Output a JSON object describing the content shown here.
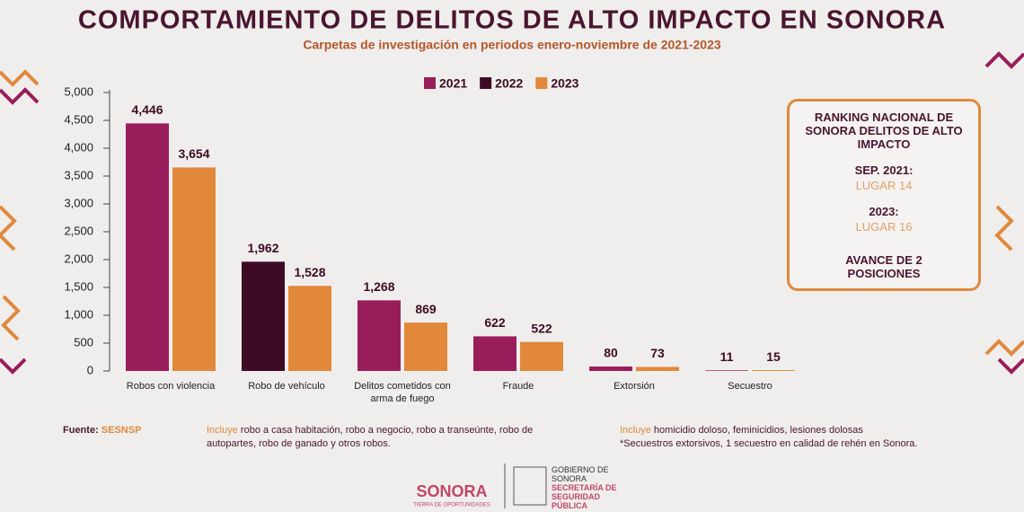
{
  "chart_data": {
    "type": "bar",
    "title": "COMPORTAMIENTO DE DELITOS DE ALTO IMPACTO EN SONORA",
    "subtitle": "Carpetas de investigación en periodos enero-noviembre de 2021-2023",
    "categories": [
      "Robos con violencia",
      "Robo de vehículo",
      "Delitos cometidos con arma de fuego",
      "Fraude",
      "Extorsión",
      "Secuestro"
    ],
    "series": [
      {
        "name": "2021",
        "color": "#9a1d5b",
        "values": [
          4446,
          null,
          1268,
          622,
          80,
          11
        ],
        "value_labels": [
          "4,446",
          null,
          "1,268",
          null,
          null,
          null
        ]
      },
      {
        "name": "2022",
        "color": "#3e0b24",
        "values": [
          null,
          1962,
          null,
          null,
          null,
          null
        ],
        "value_labels": [
          null,
          "1,962",
          null,
          null,
          null,
          null
        ]
      },
      {
        "name": "2023",
        "color": "#e1883b",
        "values": [
          3654,
          1528,
          869,
          522,
          73,
          15
        ],
        "value_labels": [
          "3,654",
          "1,528",
          null,
          null,
          null,
          null
        ]
      }
    ],
    "ylim": [
      0,
      5000
    ],
    "yticks": [
      0,
      500,
      {
        "value": 1000,
        "label": "1,000"
      },
      {
        "value": 1500,
        "label": "1,500"
      },
      {
        "value": 2000,
        "label": "2,000"
      },
      {
        "value": 2500,
        "label": "2,500"
      },
      {
        "value": 3000,
        "label": "3,000"
      },
      {
        "value": 3500,
        "label": "3,500"
      },
      {
        "value": 4000,
        "label": "4,000"
      },
      {
        "value": 4500,
        "label": "4,500"
      },
      {
        "value": 5000,
        "label": "5,000"
      }
    ],
    "grid": false,
    "legend": "top"
  },
  "ranking": {
    "title": "RANKING NACIONAL DE SONORA DELITOS DE ALTO IMPACTO",
    "items": [
      {
        "period": "SEP. 2021:",
        "rank": "LUGAR 14"
      },
      {
        "period": "2023:",
        "rank": "LUGAR 16"
      }
    ],
    "summary": "AVANCE DE 2 POSICIONES"
  },
  "notes": {
    "source_label": "Fuente:",
    "source": "SESNSP",
    "robbery_lead": "Incluye",
    "robbery_text": "robo a casa habitación, robo a negocio, robo a transeúnte, robo de autopartes, robo de ganado y otros robos.",
    "crimes_lead": "Incluye",
    "crimes_text": "homicidio doloso, feminicidios, lesiones dolosas",
    "kidnap_note": "*Secuestros extorsivos, 1 secuestro en calidad de rehén en Sonora."
  },
  "footer": {
    "state": "SONORA",
    "slogan": "TIERRA DE OPORTUNIDADES",
    "government": "GOBIERNO DE SONORA",
    "agency": "SECRETARÍA DE SEGURIDAD PÚBLICA"
  }
}
